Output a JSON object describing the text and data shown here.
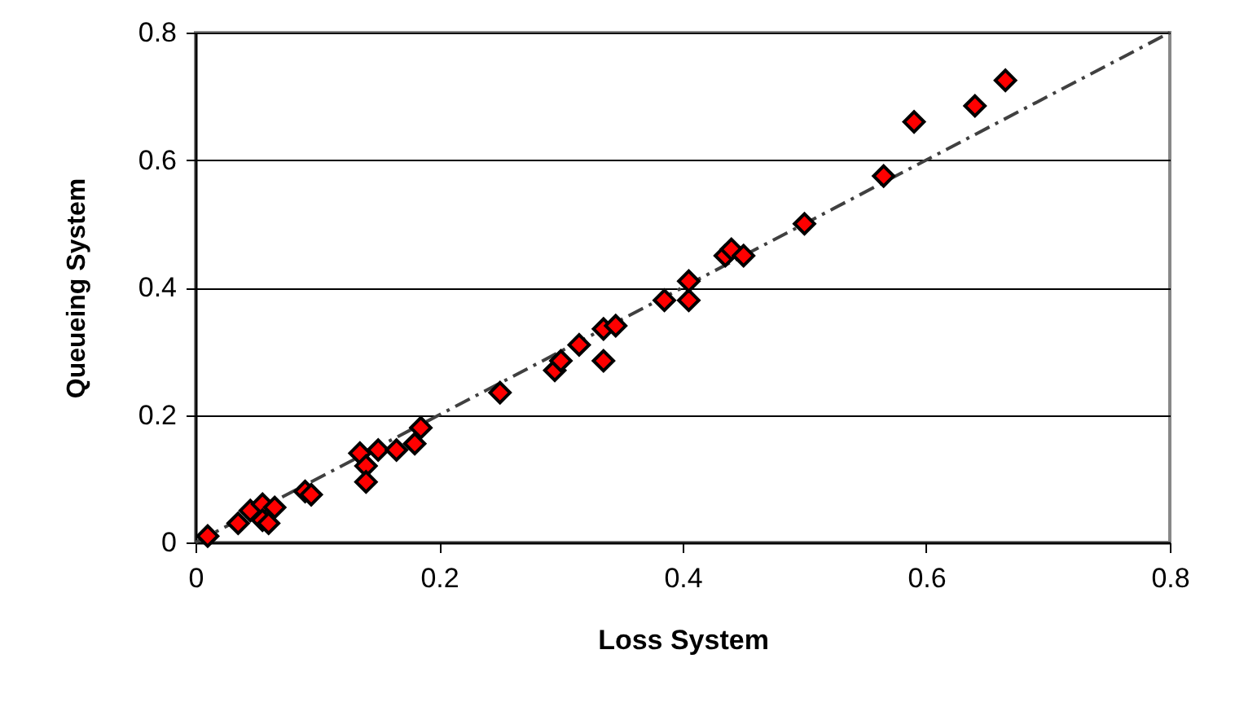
{
  "chart_data": {
    "type": "scatter",
    "xlabel": "Loss System",
    "ylabel": "Queueing System",
    "xlim": [
      0,
      0.8
    ],
    "ylim": [
      0,
      0.8
    ],
    "xticks": [
      0,
      0.2,
      0.4,
      0.6,
      0.8
    ],
    "yticks": [
      0,
      0.2,
      0.4,
      0.6,
      0.8
    ],
    "grid": "y",
    "marker": "diamond",
    "series": [
      {
        "color": "#ff0000",
        "x": [
          0.01,
          0.035,
          0.045,
          0.055,
          0.055,
          0.06,
          0.065,
          0.09,
          0.095,
          0.135,
          0.14,
          0.14,
          0.15,
          0.165,
          0.18,
          0.185,
          0.25,
          0.295,
          0.3,
          0.315,
          0.335,
          0.335,
          0.345,
          0.385,
          0.405,
          0.405,
          0.435,
          0.44,
          0.45,
          0.5,
          0.565,
          0.59,
          0.64,
          0.665
        ],
        "values": [
          0.01,
          0.03,
          0.05,
          0.06,
          0.035,
          0.03,
          0.055,
          0.08,
          0.075,
          0.14,
          0.12,
          0.095,
          0.145,
          0.145,
          0.155,
          0.18,
          0.235,
          0.27,
          0.285,
          0.31,
          0.335,
          0.285,
          0.34,
          0.38,
          0.38,
          0.41,
          0.45,
          0.46,
          0.45,
          0.5,
          0.575,
          0.66,
          0.685,
          0.725
        ]
      },
      {
        "type": "line",
        "color": "#404040",
        "line_style": "dashed",
        "marker": "none",
        "x": [
          0,
          0.8
        ],
        "values": [
          0,
          0.8
        ]
      }
    ]
  }
}
